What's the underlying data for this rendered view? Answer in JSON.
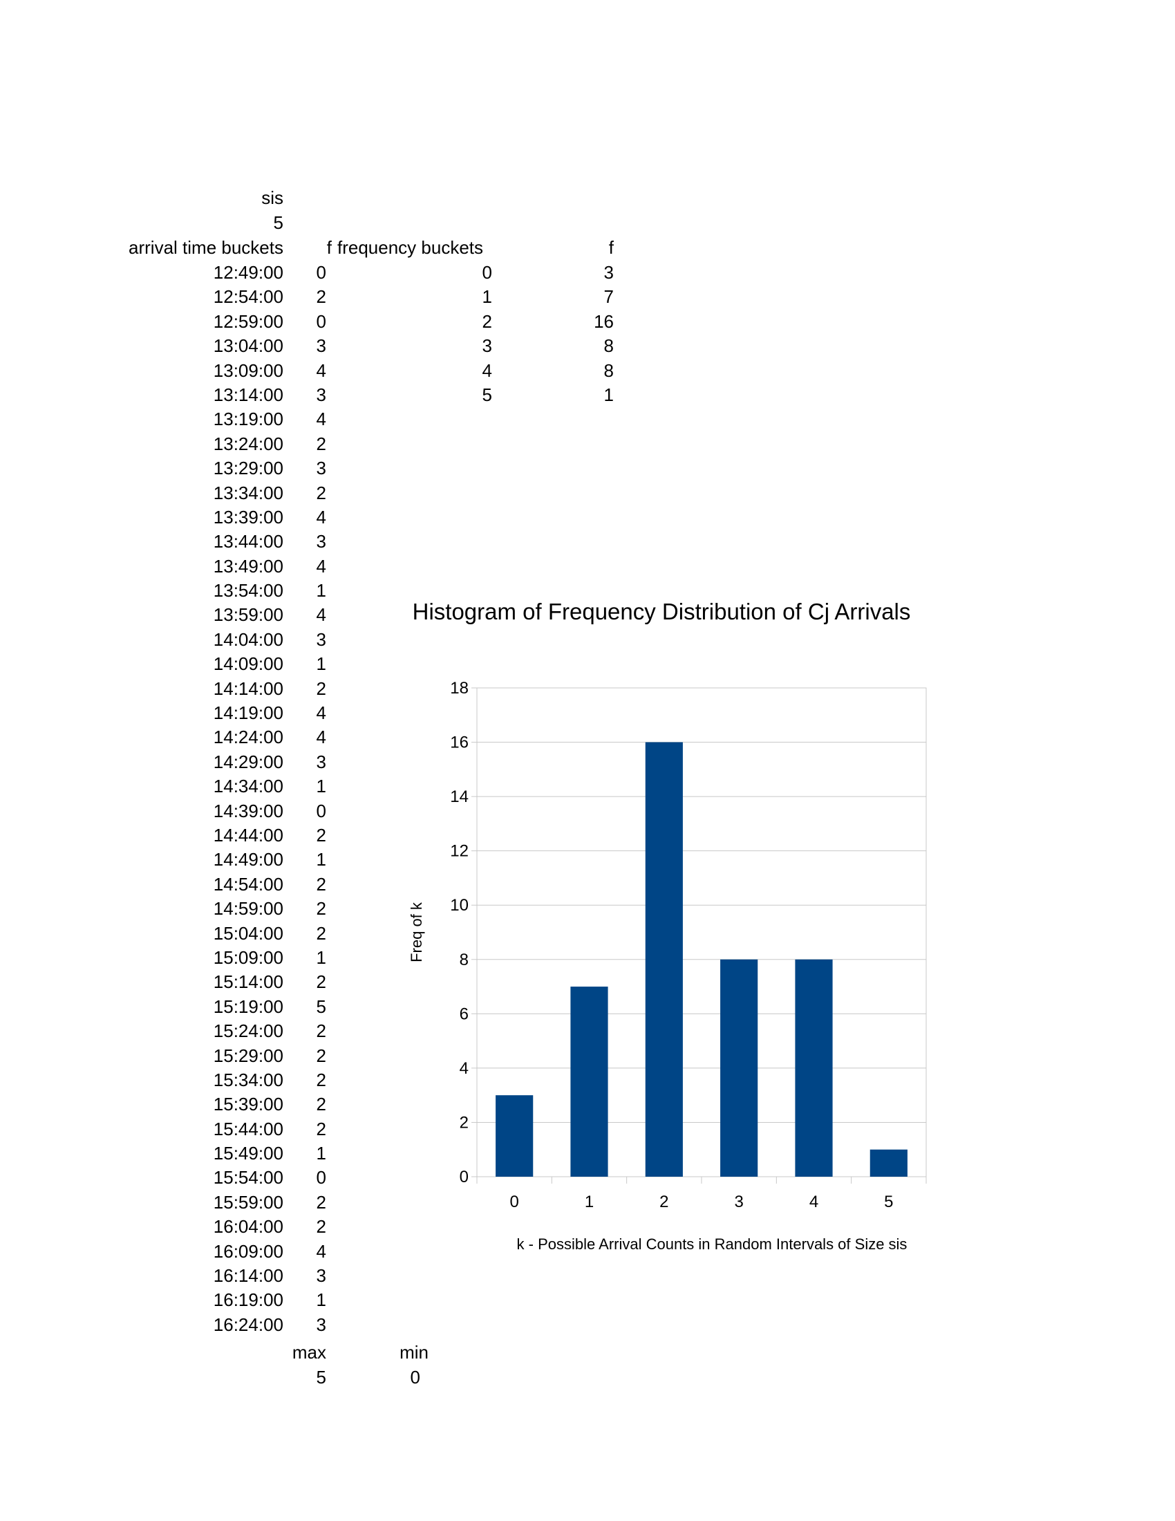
{
  "sheet": {
    "sis_label": "sis",
    "sis_value": "5",
    "headers": {
      "arrival_time_buckets": "arrival time buckets",
      "f": "f",
      "frequency_buckets": "frequency buckets",
      "f2": "f"
    },
    "rows": [
      {
        "time": "12:49:00",
        "f": "0",
        "bucket": "0",
        "freq": "3"
      },
      {
        "time": "12:54:00",
        "f": "2",
        "bucket": "1",
        "freq": "7"
      },
      {
        "time": "12:59:00",
        "f": "0",
        "bucket": "2",
        "freq": "16"
      },
      {
        "time": "13:04:00",
        "f": "3",
        "bucket": "3",
        "freq": "8"
      },
      {
        "time": "13:09:00",
        "f": "4",
        "bucket": "4",
        "freq": "8"
      },
      {
        "time": "13:14:00",
        "f": "3",
        "bucket": "5",
        "freq": "1"
      },
      {
        "time": "13:19:00",
        "f": "4"
      },
      {
        "time": "13:24:00",
        "f": "2"
      },
      {
        "time": "13:29:00",
        "f": "3"
      },
      {
        "time": "13:34:00",
        "f": "2"
      },
      {
        "time": "13:39:00",
        "f": "4"
      },
      {
        "time": "13:44:00",
        "f": "3"
      },
      {
        "time": "13:49:00",
        "f": "4"
      },
      {
        "time": "13:54:00",
        "f": "1"
      },
      {
        "time": "13:59:00",
        "f": "4"
      },
      {
        "time": "14:04:00",
        "f": "3"
      },
      {
        "time": "14:09:00",
        "f": "1"
      },
      {
        "time": "14:14:00",
        "f": "2"
      },
      {
        "time": "14:19:00",
        "f": "4"
      },
      {
        "time": "14:24:00",
        "f": "4"
      },
      {
        "time": "14:29:00",
        "f": "3"
      },
      {
        "time": "14:34:00",
        "f": "1"
      },
      {
        "time": "14:39:00",
        "f": "0"
      },
      {
        "time": "14:44:00",
        "f": "2"
      },
      {
        "time": "14:49:00",
        "f": "1"
      },
      {
        "time": "14:54:00",
        "f": "2"
      },
      {
        "time": "14:59:00",
        "f": "2"
      },
      {
        "time": "15:04:00",
        "f": "2"
      },
      {
        "time": "15:09:00",
        "f": "1"
      },
      {
        "time": "15:14:00",
        "f": "2"
      },
      {
        "time": "15:19:00",
        "f": "5"
      },
      {
        "time": "15:24:00",
        "f": "2"
      },
      {
        "time": "15:29:00",
        "f": "2"
      },
      {
        "time": "15:34:00",
        "f": "2"
      },
      {
        "time": "15:39:00",
        "f": "2"
      },
      {
        "time": "15:44:00",
        "f": "2"
      },
      {
        "time": "15:49:00",
        "f": "1"
      },
      {
        "time": "15:54:00",
        "f": "0"
      },
      {
        "time": "15:59:00",
        "f": "2"
      },
      {
        "time": "16:04:00",
        "f": "2"
      },
      {
        "time": "16:09:00",
        "f": "4"
      },
      {
        "time": "16:14:00",
        "f": "3"
      },
      {
        "time": "16:19:00",
        "f": "1"
      },
      {
        "time": "16:24:00",
        "f": "3"
      }
    ],
    "max_label": "max",
    "max_value": "5",
    "min_label": "min",
    "min_value": "0"
  },
  "chart_data": {
    "type": "bar",
    "title": "Histogram of Frequency Distribution of Cj Arrivals",
    "xlabel": "k - Possible Arrival Counts in Random Intervals of Size sis",
    "ylabel": "Freq of k",
    "categories": [
      "0",
      "1",
      "2",
      "3",
      "4",
      "5"
    ],
    "values": [
      3,
      7,
      16,
      8,
      8,
      1
    ],
    "ylim": [
      0,
      18
    ],
    "yticks": [
      0,
      2,
      4,
      6,
      8,
      10,
      12,
      14,
      16,
      18
    ],
    "grid": true,
    "legend": "none",
    "bar_color": "#004586"
  }
}
